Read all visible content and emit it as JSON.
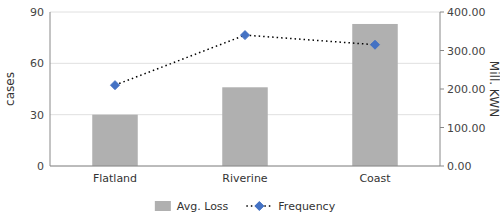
{
  "chart_data": {
    "type": "bar",
    "categories": [
      "Flatland",
      "Riverine",
      "Coast"
    ],
    "series": [
      {
        "name": "Avg. Loss",
        "type": "bar",
        "color": "#b0b0b0",
        "values": [
          30,
          46,
          83
        ]
      },
      {
        "name": "Frequency",
        "type": "line",
        "axis": "y2",
        "color": "#000000",
        "colors": [
          "#4472c4",
          "#4472c4",
          "#4472c4"
        ],
        "marker": "diamond",
        "line_style": "dotted",
        "values": [
          210,
          340,
          315
        ]
      }
    ],
    "ylabel": "cases",
    "y2label": "Mill. KWN",
    "ylim": [
      0,
      90
    ],
    "yticks": [
      0,
      30,
      60,
      90
    ],
    "y2lim": [
      0,
      400
    ],
    "y2ticks": [
      {
        "value": 0.0,
        "label": "0.00"
      },
      {
        "value": 100.0,
        "label": "100.00"
      },
      {
        "value": 200.0,
        "label": "200.00"
      },
      {
        "value": 300.0,
        "label": "300.00"
      },
      {
        "value": 400.0,
        "label": "400.00"
      }
    ],
    "grid": true,
    "legend": "bottom"
  }
}
